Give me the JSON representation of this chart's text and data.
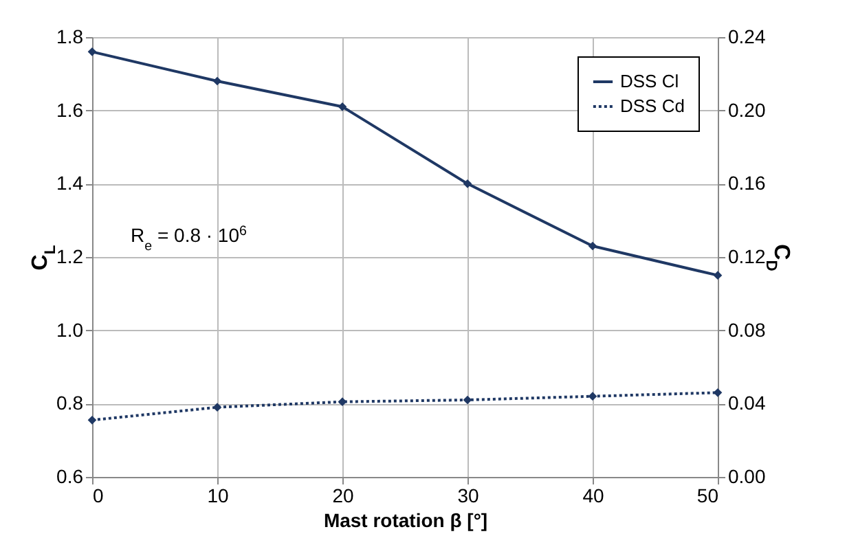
{
  "chart_data": {
    "type": "line",
    "xlabel": "Mast rotation β [°]",
    "ylabel": "C$_{L}$",
    "y2label": "C$_{D}$",
    "x": [
      0,
      10,
      20,
      30,
      40,
      50
    ],
    "series": [
      {
        "name": "DSS Cl",
        "color": "#1f3864",
        "values": [
          1.76,
          1.68,
          1.61,
          1.4,
          1.23,
          1.15
        ],
        "line_style": "solid"
      },
      {
        "name": "DSS Cd",
        "color": "#1f3864",
        "values": [
          0.031,
          0.038,
          0.041,
          0.042,
          0.044,
          0.046
        ],
        "axis": "y2",
        "line_style": "dotted"
      }
    ],
    "xlim": [
      0,
      50
    ],
    "xticks": [
      0,
      10,
      20,
      30,
      40,
      50
    ],
    "ylim": [
      0.6,
      1.8
    ],
    "yticks": [
      {
        "value": 0.6,
        "label": "0.6"
      },
      {
        "value": 0.8,
        "label": "0.8"
      },
      {
        "value": 1,
        "label": "1.0"
      },
      {
        "value": 1.2,
        "label": "1.2"
      },
      {
        "value": 1.4,
        "label": "1.4"
      },
      {
        "value": 1.6,
        "label": "1.6"
      },
      {
        "value": 1.8,
        "label": "1.8"
      }
    ],
    "y2lim": [
      0,
      0.24
    ],
    "y2ticks": [
      {
        "value": 0,
        "label": "0.00"
      },
      {
        "value": 0.04,
        "label": "0.04"
      },
      {
        "value": 0.08,
        "label": "0.08"
      },
      {
        "value": 0.12,
        "label": "0.12"
      },
      {
        "value": 0.16,
        "label": "0.16"
      },
      {
        "value": 0.2,
        "label": "0.20"
      },
      {
        "value": 0.24,
        "label": "0.24"
      }
    ],
    "annotations": [
      "R$_{e}$ = 0.8 · 10$^{6}$"
    ],
    "grid": true,
    "legend": "top right",
    "marker": "diamond"
  }
}
